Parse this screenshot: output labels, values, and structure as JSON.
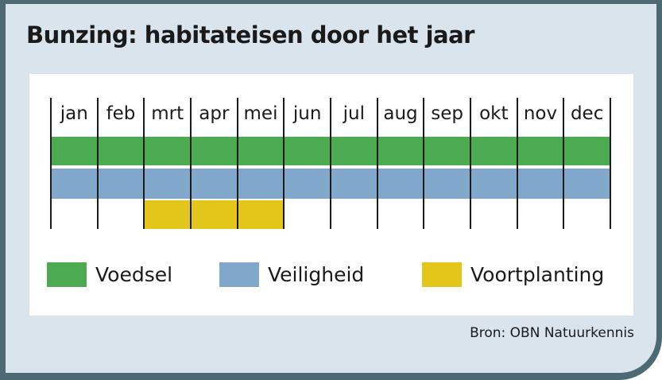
{
  "title": "Bunzing: habitateisen door het jaar",
  "source": "Bron: OBN Natuurkennis",
  "colors": {
    "frame": "#4d6a74",
    "panel_bg": "#d9e4ec",
    "card_bg": "#ffffff",
    "grid_line": "#1b1b1b",
    "text": "#1a1a1a",
    "green": "#4cab50",
    "blue": "#81a7ca",
    "yellow": "#e2c61a"
  },
  "chart_data": {
    "type": "bar",
    "subtype": "seasonal-span",
    "title": "Bunzing: habitateisen door het jaar",
    "categories": [
      "jan",
      "feb",
      "mrt",
      "apr",
      "mei",
      "jun",
      "jul",
      "aug",
      "sep",
      "okt",
      "nov",
      "dec"
    ],
    "series": [
      {
        "name": "Voedsel",
        "color": "#4cab50",
        "start_month": "jan",
        "end_month": "dec",
        "start_index": 0,
        "end_index": 11
      },
      {
        "name": "Veiligheid",
        "color": "#81a7ca",
        "start_month": "jan",
        "end_month": "dec",
        "start_index": 0,
        "end_index": 11
      },
      {
        "name": "Voortplanting",
        "color": "#e2c61a",
        "start_month": "mrt",
        "end_month": "mei",
        "start_index": 2,
        "end_index": 4
      }
    ],
    "grid": "vertical month separators, 13 lines",
    "legend_position": "bottom"
  },
  "legend": {
    "items": [
      {
        "label": "Voedsel",
        "color": "#4cab50"
      },
      {
        "label": "Veiligheid",
        "color": "#81a7ca"
      },
      {
        "label": "Voortplanting",
        "color": "#e2c61a"
      }
    ]
  }
}
